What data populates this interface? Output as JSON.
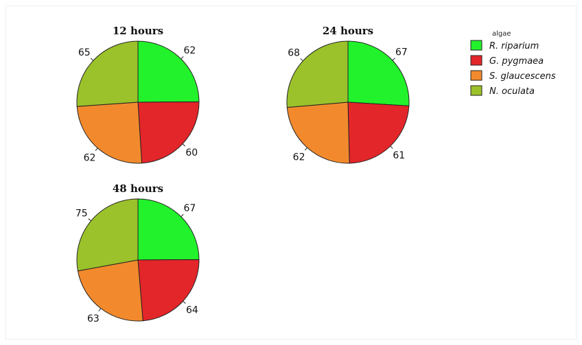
{
  "chart_data": {
    "type": "pie",
    "legend": {
      "title": "algae",
      "placement": "top-right",
      "entries": [
        {
          "name": "R. riparium",
          "color": "#22f22b"
        },
        {
          "name": "G. pygmaea",
          "color": "#e3262a"
        },
        {
          "name": "S. glaucescens",
          "color": "#f28a2d"
        },
        {
          "name": "N. oculata",
          "color": "#9bc22a"
        }
      ]
    },
    "panels": [
      {
        "title": "12 hours",
        "values": [
          62,
          60,
          62,
          65
        ]
      },
      {
        "title": "24 hours",
        "values": [
          67,
          61,
          62,
          68
        ]
      },
      {
        "title": "48 hours",
        "values": [
          67,
          64,
          63,
          75
        ]
      }
    ]
  }
}
